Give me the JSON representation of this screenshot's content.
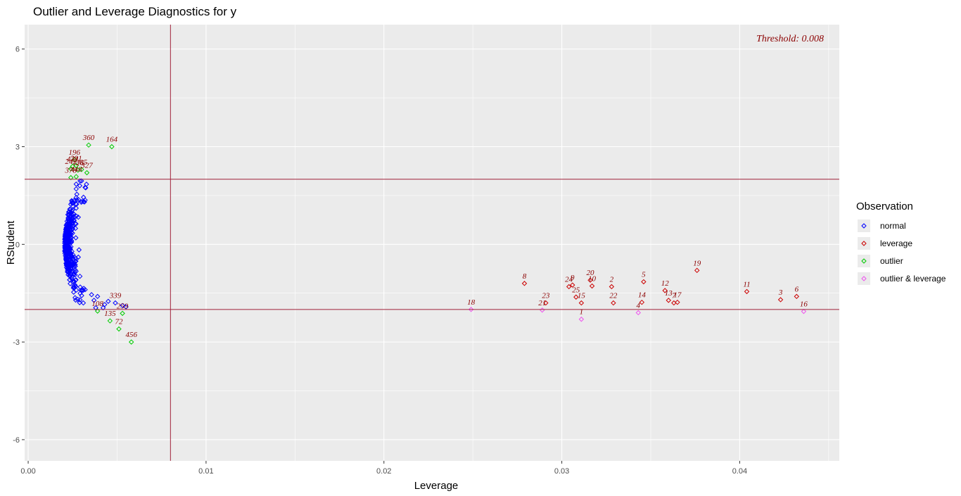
{
  "chart_data": {
    "type": "scatter",
    "title": "Outlier and Leverage Diagnostics for y",
    "xlabel": "Leverage",
    "ylabel": "RStudent",
    "xlim": [
      -0.0002,
      0.0456
    ],
    "ylim": [
      -6.65,
      6.75
    ],
    "x_ticks": [
      0.0,
      0.01,
      0.02,
      0.03,
      0.04
    ],
    "x_tick_labels": [
      "0.00",
      "0.01",
      "0.02",
      "0.03",
      "0.04"
    ],
    "y_ticks": [
      -6,
      -3,
      0,
      3,
      6
    ],
    "y_tick_labels": [
      "-6",
      "-3",
      "0",
      "3",
      "6"
    ],
    "grid": true,
    "threshold_text": "Threshold: 0.008",
    "reference_lines": {
      "vertical_x": 0.008,
      "horizontal_y": [
        2,
        -2
      ]
    },
    "legend": {
      "title": "Observation",
      "position": "right",
      "entries": [
        {
          "name": "normal",
          "color": "#0000ff"
        },
        {
          "name": "leverage",
          "color": "#cc0000"
        },
        {
          "name": "outlier",
          "color": "#00cc00"
        },
        {
          "name": "outlier & leverage",
          "color": "#ee55ee"
        }
      ]
    },
    "colors": {
      "panel": "#ebebeb",
      "grid": "#ffffff",
      "refline": "#a0203a",
      "label": "#8b0000"
    },
    "series": [
      {
        "name": "leverage",
        "points": [
          {
            "id": "8",
            "x": 0.0279,
            "y": -1.2
          },
          {
            "id": "23",
            "x": 0.0291,
            "y": -1.8
          },
          {
            "id": "24",
            "x": 0.0304,
            "y": -1.3
          },
          {
            "id": "9",
            "x": 0.0306,
            "y": -1.25
          },
          {
            "id": "25",
            "x": 0.0308,
            "y": -1.62
          },
          {
            "id": "15",
            "x": 0.0311,
            "y": -1.8
          },
          {
            "id": "20",
            "x": 0.0316,
            "y": -1.1
          },
          {
            "id": "10",
            "x": 0.0317,
            "y": -1.28
          },
          {
            "id": "2",
            "x": 0.0328,
            "y": -1.3
          },
          {
            "id": "22",
            "x": 0.0329,
            "y": -1.8
          },
          {
            "id": "5",
            "x": 0.0346,
            "y": -1.15
          },
          {
            "id": "14",
            "x": 0.0345,
            "y": -1.78
          },
          {
            "id": "12",
            "x": 0.0358,
            "y": -1.42
          },
          {
            "id": "13",
            "x": 0.036,
            "y": -1.72
          },
          {
            "id": "7",
            "x": 0.0363,
            "y": -1.8
          },
          {
            "id": "17",
            "x": 0.0365,
            "y": -1.78
          },
          {
            "id": "19",
            "x": 0.0376,
            "y": -0.8
          },
          {
            "id": "11",
            "x": 0.0404,
            "y": -1.45
          },
          {
            "id": "3",
            "x": 0.0423,
            "y": -1.7
          },
          {
            "id": "6",
            "x": 0.0432,
            "y": -1.6
          }
        ]
      },
      {
        "name": "outlier & leverage",
        "points": [
          {
            "id": "18",
            "x": 0.0249,
            "y": -2.0
          },
          {
            "id": "21",
            "x": 0.0289,
            "y": -2.02
          },
          {
            "id": "1",
            "x": 0.0311,
            "y": -2.3
          },
          {
            "id": "4",
            "x": 0.0343,
            "y": -2.1
          },
          {
            "id": "16",
            "x": 0.0436,
            "y": -2.06
          }
        ]
      },
      {
        "name": "outlier",
        "points": [
          {
            "id": "196",
            "x": 0.0026,
            "y": 2.6
          },
          {
            "id": "360",
            "x": 0.0034,
            "y": 3.05
          },
          {
            "id": "164",
            "x": 0.0047,
            "y": 3.0
          },
          {
            "id": "421",
            "x": 0.0025,
            "y": 2.4
          },
          {
            "id": "391",
            "x": 0.0027,
            "y": 2.42
          },
          {
            "id": "245",
            "x": 0.0024,
            "y": 2.32
          },
          {
            "id": "126",
            "x": 0.0028,
            "y": 2.28
          },
          {
            "id": "385",
            "x": 0.003,
            "y": 2.3
          },
          {
            "id": "327",
            "x": 0.0033,
            "y": 2.2
          },
          {
            "id": "378",
            "x": 0.0024,
            "y": 2.05
          },
          {
            "id": "448",
            "x": 0.0027,
            "y": 2.08
          },
          {
            "id": "108",
            "x": 0.0039,
            "y": -2.05
          },
          {
            "id": "135",
            "x": 0.0046,
            "y": -2.35
          },
          {
            "id": "72",
            "x": 0.0051,
            "y": -2.6
          },
          {
            "id": "456",
            "x": 0.0058,
            "y": -3.0
          },
          {
            "id": "259",
            "x": 0.0053,
            "y": -2.12
          }
        ]
      }
    ],
    "point_labels_extra": [
      {
        "id": "339",
        "x": 0.0049,
        "y": -1.8
      }
    ]
  }
}
